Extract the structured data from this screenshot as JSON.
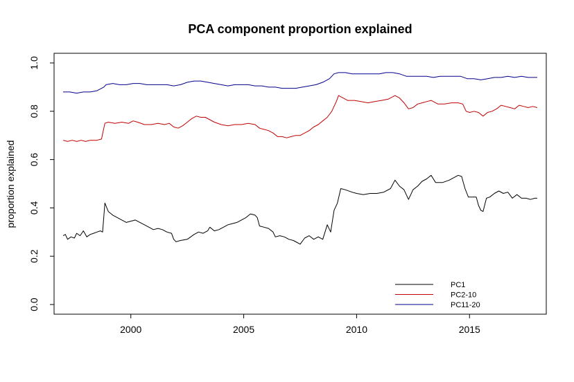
{
  "chart_data": {
    "type": "line",
    "title": "PCA component proportion explained",
    "xlabel": "",
    "ylabel": "proportion explained",
    "xlim": [
      1996.6,
      2018.4
    ],
    "ylim": [
      -0.04,
      1.04
    ],
    "xticks": [
      2000,
      2005,
      2010,
      2015
    ],
    "xtick_labels": [
      "2000",
      "2005",
      "2010",
      "2015"
    ],
    "yticks": [
      0.0,
      0.2,
      0.4,
      0.6,
      0.8,
      1.0
    ],
    "ytick_labels": [
      "0.0",
      "0.2",
      "0.4",
      "0.6",
      "0.8",
      "1.0"
    ],
    "grid": false,
    "legend_position": "bottom-right",
    "series": [
      {
        "name": "PC1",
        "color": "#000000",
        "points": [
          [
            1997.0,
            0.285
          ],
          [
            1997.1,
            0.29
          ],
          [
            1997.2,
            0.27
          ],
          [
            1997.35,
            0.28
          ],
          [
            1997.5,
            0.275
          ],
          [
            1997.6,
            0.295
          ],
          [
            1997.75,
            0.285
          ],
          [
            1997.9,
            0.305
          ],
          [
            1998.05,
            0.28
          ],
          [
            1998.2,
            0.29
          ],
          [
            1998.35,
            0.295
          ],
          [
            1998.5,
            0.3
          ],
          [
            1998.65,
            0.305
          ],
          [
            1998.75,
            0.3
          ],
          [
            1998.85,
            0.42
          ],
          [
            1999.0,
            0.385
          ],
          [
            1999.2,
            0.37
          ],
          [
            1999.4,
            0.36
          ],
          [
            1999.6,
            0.35
          ],
          [
            1999.8,
            0.34
          ],
          [
            2000.0,
            0.345
          ],
          [
            2000.2,
            0.35
          ],
          [
            2000.4,
            0.34
          ],
          [
            2000.6,
            0.33
          ],
          [
            2000.8,
            0.32
          ],
          [
            2001.0,
            0.31
          ],
          [
            2001.2,
            0.315
          ],
          [
            2001.4,
            0.31
          ],
          [
            2001.6,
            0.3
          ],
          [
            2001.8,
            0.295
          ],
          [
            2001.9,
            0.27
          ],
          [
            2002.0,
            0.26
          ],
          [
            2002.2,
            0.265
          ],
          [
            2002.5,
            0.27
          ],
          [
            2002.8,
            0.29
          ],
          [
            2003.0,
            0.3
          ],
          [
            2003.2,
            0.295
          ],
          [
            2003.4,
            0.305
          ],
          [
            2003.5,
            0.32
          ],
          [
            2003.7,
            0.305
          ],
          [
            2003.9,
            0.31
          ],
          [
            2004.1,
            0.32
          ],
          [
            2004.3,
            0.33
          ],
          [
            2004.5,
            0.335
          ],
          [
            2004.7,
            0.34
          ],
          [
            2004.9,
            0.35
          ],
          [
            2005.1,
            0.36
          ],
          [
            2005.3,
            0.375
          ],
          [
            2005.5,
            0.37
          ],
          [
            2005.6,
            0.36
          ],
          [
            2005.7,
            0.325
          ],
          [
            2005.9,
            0.32
          ],
          [
            2006.1,
            0.315
          ],
          [
            2006.3,
            0.3
          ],
          [
            2006.4,
            0.28
          ],
          [
            2006.6,
            0.285
          ],
          [
            2006.8,
            0.28
          ],
          [
            2007.0,
            0.27
          ],
          [
            2007.2,
            0.265
          ],
          [
            2007.4,
            0.255
          ],
          [
            2007.5,
            0.25
          ],
          [
            2007.7,
            0.275
          ],
          [
            2007.9,
            0.285
          ],
          [
            2008.1,
            0.27
          ],
          [
            2008.3,
            0.28
          ],
          [
            2008.5,
            0.27
          ],
          [
            2008.7,
            0.33
          ],
          [
            2008.85,
            0.3
          ],
          [
            2009.0,
            0.39
          ],
          [
            2009.15,
            0.42
          ],
          [
            2009.3,
            0.48
          ],
          [
            2009.5,
            0.475
          ],
          [
            2009.8,
            0.465
          ],
          [
            2010.0,
            0.46
          ],
          [
            2010.3,
            0.455
          ],
          [
            2010.6,
            0.46
          ],
          [
            2010.9,
            0.46
          ],
          [
            2011.2,
            0.465
          ],
          [
            2011.5,
            0.48
          ],
          [
            2011.7,
            0.515
          ],
          [
            2011.9,
            0.49
          ],
          [
            2012.1,
            0.475
          ],
          [
            2012.3,
            0.435
          ],
          [
            2012.5,
            0.475
          ],
          [
            2012.7,
            0.49
          ],
          [
            2012.9,
            0.51
          ],
          [
            2013.1,
            0.52
          ],
          [
            2013.3,
            0.535
          ],
          [
            2013.5,
            0.505
          ],
          [
            2013.8,
            0.505
          ],
          [
            2014.1,
            0.515
          ],
          [
            2014.3,
            0.525
          ],
          [
            2014.5,
            0.535
          ],
          [
            2014.65,
            0.53
          ],
          [
            2014.8,
            0.48
          ],
          [
            2014.95,
            0.445
          ],
          [
            2015.1,
            0.445
          ],
          [
            2015.3,
            0.445
          ],
          [
            2015.4,
            0.41
          ],
          [
            2015.5,
            0.39
          ],
          [
            2015.6,
            0.385
          ],
          [
            2015.75,
            0.44
          ],
          [
            2015.9,
            0.445
          ],
          [
            2016.1,
            0.46
          ],
          [
            2016.3,
            0.47
          ],
          [
            2016.5,
            0.46
          ],
          [
            2016.7,
            0.465
          ],
          [
            2016.9,
            0.44
          ],
          [
            2017.1,
            0.455
          ],
          [
            2017.3,
            0.44
          ],
          [
            2017.5,
            0.44
          ],
          [
            2017.7,
            0.435
          ],
          [
            2017.9,
            0.44
          ],
          [
            2018.0,
            0.44
          ]
        ]
      },
      {
        "name": "PC2-10",
        "color": "#c00000",
        "points": [
          [
            1997.0,
            0.68
          ],
          [
            1997.2,
            0.675
          ],
          [
            1997.4,
            0.68
          ],
          [
            1997.6,
            0.675
          ],
          [
            1997.8,
            0.68
          ],
          [
            1998.0,
            0.675
          ],
          [
            1998.2,
            0.68
          ],
          [
            1998.5,
            0.68
          ],
          [
            1998.7,
            0.685
          ],
          [
            1998.85,
            0.75
          ],
          [
            1999.0,
            0.755
          ],
          [
            1999.3,
            0.75
          ],
          [
            1999.6,
            0.755
          ],
          [
            1999.9,
            0.75
          ],
          [
            2000.1,
            0.76
          ],
          [
            2000.3,
            0.755
          ],
          [
            2000.6,
            0.745
          ],
          [
            2000.9,
            0.745
          ],
          [
            2001.2,
            0.75
          ],
          [
            2001.5,
            0.745
          ],
          [
            2001.7,
            0.75
          ],
          [
            2001.9,
            0.735
          ],
          [
            2002.1,
            0.73
          ],
          [
            2002.3,
            0.74
          ],
          [
            2002.5,
            0.755
          ],
          [
            2002.7,
            0.77
          ],
          [
            2002.9,
            0.78
          ],
          [
            2003.1,
            0.775
          ],
          [
            2003.3,
            0.775
          ],
          [
            2003.5,
            0.765
          ],
          [
            2003.7,
            0.755
          ],
          [
            2004.0,
            0.745
          ],
          [
            2004.3,
            0.74
          ],
          [
            2004.6,
            0.745
          ],
          [
            2004.9,
            0.745
          ],
          [
            2005.2,
            0.75
          ],
          [
            2005.5,
            0.745
          ],
          [
            2005.7,
            0.73
          ],
          [
            2005.9,
            0.725
          ],
          [
            2006.1,
            0.72
          ],
          [
            2006.3,
            0.71
          ],
          [
            2006.5,
            0.695
          ],
          [
            2006.7,
            0.695
          ],
          [
            2006.9,
            0.69
          ],
          [
            2007.1,
            0.695
          ],
          [
            2007.3,
            0.7
          ],
          [
            2007.5,
            0.7
          ],
          [
            2007.7,
            0.71
          ],
          [
            2007.9,
            0.72
          ],
          [
            2008.1,
            0.735
          ],
          [
            2008.3,
            0.745
          ],
          [
            2008.5,
            0.76
          ],
          [
            2008.7,
            0.775
          ],
          [
            2008.9,
            0.8
          ],
          [
            2009.1,
            0.84
          ],
          [
            2009.2,
            0.865
          ],
          [
            2009.4,
            0.855
          ],
          [
            2009.6,
            0.845
          ],
          [
            2009.9,
            0.845
          ],
          [
            2010.2,
            0.84
          ],
          [
            2010.5,
            0.835
          ],
          [
            2010.8,
            0.84
          ],
          [
            2011.1,
            0.845
          ],
          [
            2011.4,
            0.85
          ],
          [
            2011.7,
            0.865
          ],
          [
            2011.9,
            0.855
          ],
          [
            2012.1,
            0.835
          ],
          [
            2012.3,
            0.81
          ],
          [
            2012.5,
            0.815
          ],
          [
            2012.7,
            0.83
          ],
          [
            2012.9,
            0.835
          ],
          [
            2013.1,
            0.84
          ],
          [
            2013.3,
            0.845
          ],
          [
            2013.6,
            0.83
          ],
          [
            2013.9,
            0.83
          ],
          [
            2014.2,
            0.835
          ],
          [
            2014.5,
            0.835
          ],
          [
            2014.7,
            0.83
          ],
          [
            2014.85,
            0.8
          ],
          [
            2015.0,
            0.795
          ],
          [
            2015.2,
            0.8
          ],
          [
            2015.4,
            0.795
          ],
          [
            2015.6,
            0.78
          ],
          [
            2015.8,
            0.795
          ],
          [
            2016.0,
            0.8
          ],
          [
            2016.2,
            0.81
          ],
          [
            2016.4,
            0.825
          ],
          [
            2016.6,
            0.82
          ],
          [
            2016.8,
            0.815
          ],
          [
            2017.0,
            0.81
          ],
          [
            2017.2,
            0.825
          ],
          [
            2017.4,
            0.82
          ],
          [
            2017.6,
            0.815
          ],
          [
            2017.8,
            0.82
          ],
          [
            2018.0,
            0.815
          ]
        ]
      },
      {
        "name": "PC11-20",
        "color": "#00008b",
        "points": [
          [
            1997.0,
            0.88
          ],
          [
            1997.3,
            0.88
          ],
          [
            1997.6,
            0.875
          ],
          [
            1997.9,
            0.88
          ],
          [
            1998.2,
            0.88
          ],
          [
            1998.5,
            0.885
          ],
          [
            1998.8,
            0.9
          ],
          [
            1998.9,
            0.91
          ],
          [
            1999.2,
            0.915
          ],
          [
            1999.5,
            0.91
          ],
          [
            1999.8,
            0.91
          ],
          [
            2000.1,
            0.915
          ],
          [
            2000.4,
            0.915
          ],
          [
            2000.7,
            0.91
          ],
          [
            2001.0,
            0.91
          ],
          [
            2001.3,
            0.91
          ],
          [
            2001.6,
            0.91
          ],
          [
            2001.9,
            0.905
          ],
          [
            2002.2,
            0.91
          ],
          [
            2002.5,
            0.92
          ],
          [
            2002.8,
            0.925
          ],
          [
            2003.1,
            0.925
          ],
          [
            2003.4,
            0.92
          ],
          [
            2003.7,
            0.915
          ],
          [
            2004.0,
            0.91
          ],
          [
            2004.3,
            0.905
          ],
          [
            2004.6,
            0.91
          ],
          [
            2004.9,
            0.91
          ],
          [
            2005.2,
            0.91
          ],
          [
            2005.5,
            0.905
          ],
          [
            2005.8,
            0.905
          ],
          [
            2006.1,
            0.9
          ],
          [
            2006.4,
            0.9
          ],
          [
            2006.7,
            0.895
          ],
          [
            2007.0,
            0.895
          ],
          [
            2007.3,
            0.895
          ],
          [
            2007.6,
            0.9
          ],
          [
            2007.9,
            0.905
          ],
          [
            2008.2,
            0.91
          ],
          [
            2008.5,
            0.92
          ],
          [
            2008.8,
            0.935
          ],
          [
            2009.0,
            0.955
          ],
          [
            2009.2,
            0.96
          ],
          [
            2009.5,
            0.96
          ],
          [
            2009.8,
            0.955
          ],
          [
            2010.1,
            0.955
          ],
          [
            2010.4,
            0.955
          ],
          [
            2010.7,
            0.955
          ],
          [
            2011.0,
            0.955
          ],
          [
            2011.3,
            0.96
          ],
          [
            2011.6,
            0.96
          ],
          [
            2011.9,
            0.955
          ],
          [
            2012.2,
            0.945
          ],
          [
            2012.5,
            0.945
          ],
          [
            2012.8,
            0.945
          ],
          [
            2013.1,
            0.945
          ],
          [
            2013.4,
            0.94
          ],
          [
            2013.7,
            0.945
          ],
          [
            2014.0,
            0.945
          ],
          [
            2014.3,
            0.945
          ],
          [
            2014.6,
            0.945
          ],
          [
            2014.9,
            0.935
          ],
          [
            2015.2,
            0.935
          ],
          [
            2015.5,
            0.93
          ],
          [
            2015.8,
            0.935
          ],
          [
            2016.1,
            0.94
          ],
          [
            2016.4,
            0.94
          ],
          [
            2016.7,
            0.945
          ],
          [
            2017.0,
            0.94
          ],
          [
            2017.3,
            0.945
          ],
          [
            2017.6,
            0.94
          ],
          [
            2018.0,
            0.94
          ]
        ]
      }
    ]
  }
}
